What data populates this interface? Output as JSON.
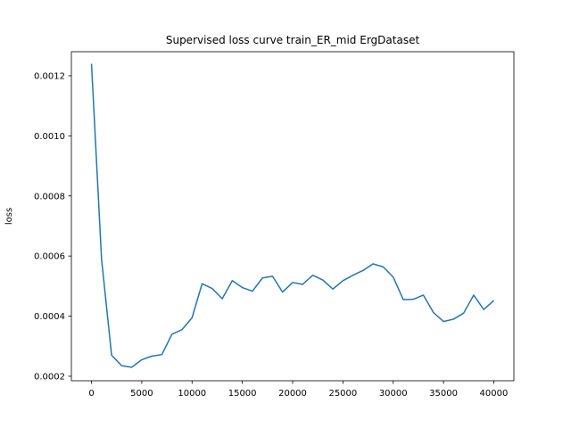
{
  "chart_data": {
    "type": "line",
    "title": "Supervised loss curve train_ER_mid ErgDataset",
    "xlabel": "",
    "ylabel": "loss",
    "xlim": [
      -2000,
      42000
    ],
    "ylim": [
      0.000185,
      0.00128
    ],
    "x_ticks": [
      0,
      5000,
      10000,
      15000,
      20000,
      25000,
      30000,
      35000,
      40000
    ],
    "x_tick_labels": [
      "0",
      "5000",
      "10000",
      "15000",
      "20000",
      "25000",
      "30000",
      "35000",
      "40000"
    ],
    "y_ticks": [
      0.0002,
      0.0004,
      0.0006,
      0.0008,
      0.001,
      0.0012
    ],
    "y_tick_labels": [
      "0.0002",
      "0.0004",
      "0.0006",
      "0.0008",
      "0.0010",
      "0.0012"
    ],
    "grid": false,
    "series": [
      {
        "color": "#1f77b4",
        "x": [
          0,
          1000,
          2000,
          3000,
          4000,
          5000,
          6000,
          7000,
          8000,
          9000,
          10000,
          11000,
          12000,
          13000,
          14000,
          15000,
          16000,
          17000,
          18000,
          19000,
          20000,
          21000,
          22000,
          23000,
          24000,
          25000,
          26000,
          27000,
          28000,
          29000,
          30000,
          31000,
          32000,
          33000,
          34000,
          35000,
          36000,
          37000,
          38000,
          39000,
          40000
        ],
        "y": [
          0.00124,
          0.00059,
          0.00027,
          0.000235,
          0.00023,
          0.000255,
          0.000267,
          0.000272,
          0.00034,
          0.000355,
          0.000395,
          0.000508,
          0.000492,
          0.000458,
          0.000518,
          0.000495,
          0.000483,
          0.000527,
          0.000533,
          0.00048,
          0.000512,
          0.000506,
          0.000536,
          0.00052,
          0.00049,
          0.000518,
          0.000536,
          0.000552,
          0.000574,
          0.000564,
          0.00053,
          0.000455,
          0.000456,
          0.00047,
          0.000412,
          0.000382,
          0.00039,
          0.00041,
          0.00047,
          0.000422,
          0.000452
        ]
      }
    ]
  }
}
